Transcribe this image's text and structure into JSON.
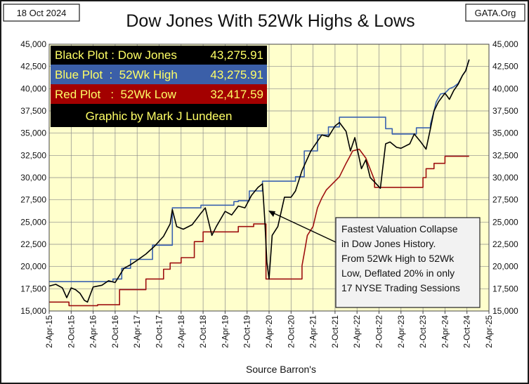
{
  "chart_data": {
    "type": "line",
    "title": "Dow Jones With 52Wk Highs & Lows",
    "date_label": "18 Oct 2024",
    "source_label": "GATA.Org",
    "xlabel": "Source Barron's",
    "ylabel": "",
    "ylim": [
      15000,
      45000
    ],
    "yticks": [
      "15,000",
      "17,500",
      "20,000",
      "22,500",
      "25,000",
      "27,500",
      "30,000",
      "32,500",
      "35,000",
      "37,500",
      "40,000",
      "42,500",
      "45,000"
    ],
    "yticks_values": [
      15000,
      17500,
      20000,
      22500,
      25000,
      27500,
      30000,
      32500,
      35000,
      37500,
      40000,
      42500,
      45000
    ],
    "x_range": [
      2015.25,
      2025.25
    ],
    "xticks": [
      "2-Apr-15",
      "2-Oct-15",
      "2-Apr-16",
      "2-Oct-16",
      "2-Apr-17",
      "2-Oct-17",
      "2-Apr-18",
      "2-Oct-18",
      "2-Apr-19",
      "2-Oct-19",
      "2-Apr-20",
      "2-Oct-20",
      "2-Apr-21",
      "2-Oct-21",
      "2-Apr-22",
      "2-Oct-22",
      "2-Apr-23",
      "2-Oct-23",
      "2-Apr-24",
      "2-Oct-24",
      "2-Apr-25"
    ],
    "xticks_values": [
      2015.25,
      2015.75,
      2016.25,
      2016.75,
      2017.25,
      2017.75,
      2018.25,
      2018.75,
      2019.25,
      2019.75,
      2020.25,
      2020.75,
      2021.25,
      2021.75,
      2022.25,
      2022.75,
      2023.25,
      2023.75,
      2024.25,
      2024.75,
      2025.25
    ],
    "legend": [
      {
        "label": "Black Plot : Dow Jones",
        "value": "43,275.91",
        "bg": "#000000",
        "fg": "#ffff66"
      },
      {
        "label": "Blue Plot  :  52Wk High",
        "value": "43,275.91",
        "bg": "#3b5fa8",
        "fg": "#ffff66"
      },
      {
        "label": "Red Plot   :  52Wk Low",
        "value": "32,417.59",
        "bg": "#a30000",
        "fg": "#ffff66"
      },
      {
        "label": "Graphic by Mark J Lundeen",
        "value": "",
        "bg": "#000000",
        "fg": "#ffff66"
      }
    ],
    "annotation_lines": [
      "Fastest Valuation Collapse",
      "in Dow Jones History.",
      "From 52Wk High to 52Wk",
      "Low, Deflated 20% in only",
      "17 NYSE Trading Sessions"
    ],
    "series": [
      {
        "name": "Dow Jones",
        "color": "#000000",
        "x": [
          2015.25,
          2015.4,
          2015.55,
          2015.65,
          2015.75,
          2015.85,
          2015.95,
          2016.05,
          2016.12,
          2016.25,
          2016.45,
          2016.6,
          2016.75,
          2016.85,
          2016.95,
          2017.1,
          2017.25,
          2017.45,
          2017.65,
          2017.85,
          2018.0,
          2018.05,
          2018.15,
          2018.3,
          2018.5,
          2018.7,
          2018.8,
          2018.95,
          2019.05,
          2019.25,
          2019.4,
          2019.55,
          2019.7,
          2019.85,
          2020.0,
          2020.1,
          2020.15,
          2020.2,
          2020.25,
          2020.32,
          2020.45,
          2020.6,
          2020.75,
          2020.85,
          2021.0,
          2021.2,
          2021.45,
          2021.6,
          2021.75,
          2021.85,
          2022.0,
          2022.1,
          2022.2,
          2022.35,
          2022.45,
          2022.55,
          2022.65,
          2022.78,
          2022.9,
          2023.0,
          2023.15,
          2023.25,
          2023.45,
          2023.55,
          2023.7,
          2023.82,
          2023.92,
          2024.0,
          2024.1,
          2024.25,
          2024.35,
          2024.45,
          2024.55,
          2024.65,
          2024.72,
          2024.8
        ],
        "values": [
          17800,
          18000,
          17600,
          16500,
          17600,
          17400,
          17000,
          16200,
          16000,
          17700,
          17900,
          18400,
          18200,
          19000,
          19800,
          20200,
          20700,
          21400,
          22300,
          23400,
          24800,
          26400,
          24500,
          24200,
          24700,
          26000,
          26600,
          23500,
          24500,
          26200,
          25800,
          26800,
          26600,
          28000,
          28900,
          29300,
          25500,
          20500,
          18600,
          23500,
          24500,
          27800,
          27800,
          28500,
          30800,
          33000,
          34800,
          34600,
          35800,
          36200,
          35200,
          33000,
          34500,
          31000,
          32000,
          30000,
          29500,
          28800,
          33800,
          34000,
          33400,
          33300,
          33800,
          34900,
          34000,
          33200,
          35500,
          37500,
          38500,
          39500,
          38800,
          39800,
          40500,
          41500,
          42000,
          43276
        ]
      },
      {
        "name": "52Wk High",
        "color": "#3a62b0",
        "x": [
          2015.25,
          2016.7,
          2016.7,
          2016.9,
          2016.9,
          2017.1,
          2017.1,
          2017.6,
          2017.6,
          2018.05,
          2018.05,
          2018.7,
          2018.7,
          2019.45,
          2019.45,
          2019.55,
          2019.55,
          2019.8,
          2019.8,
          2020.1,
          2020.1,
          2020.85,
          2020.85,
          2021.05,
          2021.05,
          2021.35,
          2021.35,
          2021.6,
          2021.6,
          2021.85,
          2021.85,
          2022.9,
          2022.9,
          2023.05,
          2023.05,
          2023.6,
          2023.6,
          2023.92,
          2023.92,
          2024.0,
          2024.05,
          2024.15,
          2024.25,
          2024.35,
          2024.45,
          2024.55,
          2024.65,
          2024.72,
          2024.8
        ],
        "values": [
          18300,
          18300,
          18600,
          18600,
          19800,
          19800,
          20800,
          20800,
          22400,
          22400,
          26600,
          26600,
          26900,
          26900,
          27300,
          27300,
          27400,
          27400,
          28500,
          28500,
          29600,
          29600,
          30100,
          30100,
          33000,
          33000,
          34800,
          34800,
          35700,
          35700,
          36800,
          36800,
          35500,
          35500,
          34900,
          34900,
          35600,
          35600,
          36000,
          37500,
          38500,
          39400,
          39500,
          40000,
          40200,
          40600,
          41500,
          42000,
          43276
        ]
      },
      {
        "name": "52Wk Low",
        "color": "#9e1010",
        "x": [
          2015.25,
          2015.7,
          2015.7,
          2016.35,
          2016.35,
          2016.85,
          2016.85,
          2017.45,
          2017.45,
          2017.85,
          2017.85,
          2018.0,
          2018.0,
          2018.25,
          2018.25,
          2018.55,
          2018.55,
          2018.75,
          2018.75,
          2019.55,
          2019.55,
          2019.9,
          2019.9,
          2020.18,
          2020.18,
          2020.5,
          2020.5,
          2021.0,
          2021.0,
          2021.05,
          2021.12,
          2021.25,
          2021.35,
          2021.45,
          2021.55,
          2021.75,
          2021.85,
          2022.0,
          2022.1,
          2022.15,
          2022.3,
          2022.45,
          2022.65,
          2022.65,
          2023.75,
          2023.75,
          2023.82,
          2023.82,
          2024.0,
          2024.0,
          2024.25,
          2024.25,
          2024.8
        ],
        "values": [
          16000,
          16000,
          15600,
          15600,
          15700,
          15700,
          17400,
          17400,
          18600,
          18600,
          19700,
          19700,
          20400,
          20400,
          21000,
          21000,
          22800,
          22800,
          23900,
          23900,
          24500,
          24500,
          24800,
          24800,
          18600,
          18600,
          18600,
          18600,
          20100,
          21500,
          23500,
          24500,
          26600,
          27700,
          28600,
          29600,
          30100,
          31600,
          32500,
          33000,
          33200,
          32200,
          29700,
          28900,
          28900,
          30000,
          30000,
          31000,
          31000,
          31600,
          31600,
          32400,
          32400
        ]
      }
    ]
  }
}
